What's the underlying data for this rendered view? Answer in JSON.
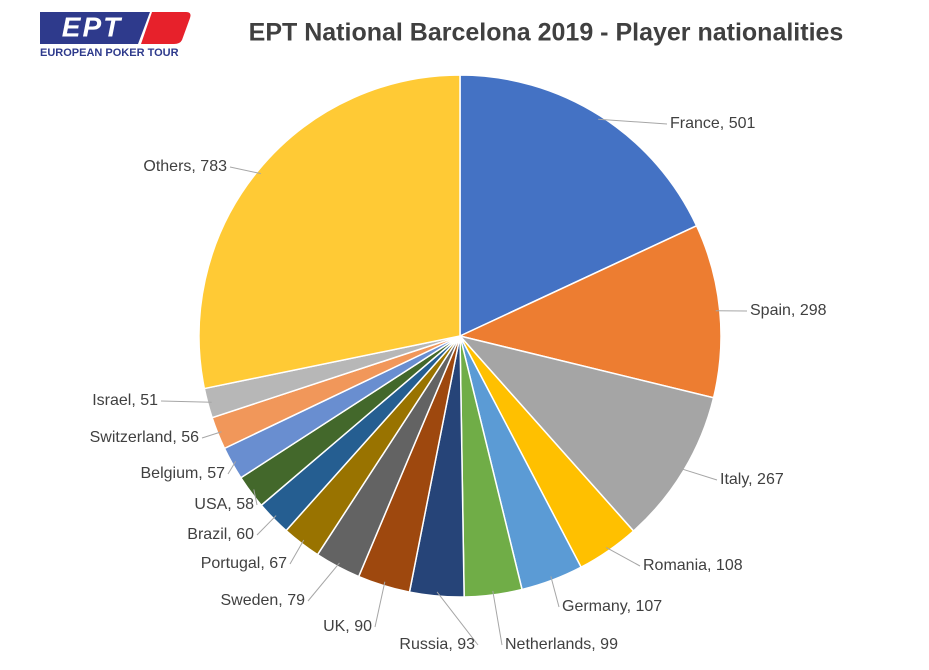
{
  "logo": {
    "mark": "EPT",
    "caption": "EUROPEAN POKER TOUR"
  },
  "chart_data": {
    "type": "pie",
    "title": "EPT National Barcelona 2019 - Player nationalities",
    "categories": [
      "France",
      "Spain",
      "Italy",
      "Romania",
      "Germany",
      "Netherlands",
      "Russia",
      "UK",
      "Sweden",
      "Portugal",
      "Brazil",
      "USA",
      "Belgium",
      "Switzerland",
      "Israel",
      "Others"
    ],
    "values": [
      501,
      298,
      267,
      108,
      107,
      99,
      93,
      90,
      79,
      67,
      60,
      58,
      57,
      56,
      51,
      783
    ],
    "value_labels": [
      "France, 501",
      "Spain, 298",
      "Italy, 267",
      "Romania, 108",
      "Germany, 107",
      "Netherlands, 99",
      "Russia, 93",
      "UK, 90",
      "Sweden, 79",
      "Portugal, 67",
      "Brazil, 60",
      "USA, 58",
      "Belgium, 57",
      "Switzerland, 56",
      "Israel, 51",
      "Others, 783"
    ],
    "colors": [
      "#4472c4",
      "#ed7d31",
      "#a5a5a5",
      "#ffc000",
      "#5b9bd5",
      "#70ad47",
      "#264478",
      "#9e480e",
      "#636363",
      "#997300",
      "#255e91",
      "#43682b",
      "#698ed0",
      "#f1975a",
      "#b7b7b7",
      "#ffca35"
    ]
  }
}
